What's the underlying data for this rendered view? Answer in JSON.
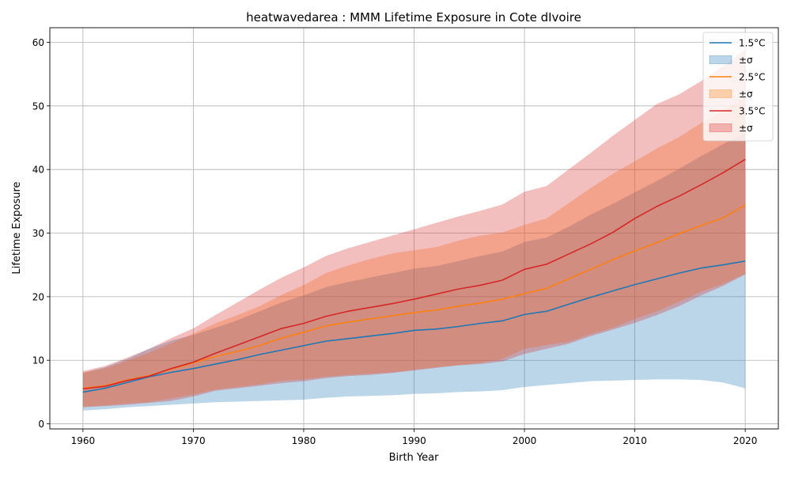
{
  "chart_data": {
    "type": "line",
    "title": "heatwavedarea : MMM Lifetime Exposure in Cote dIvoire",
    "xlabel": "Birth Year",
    "ylabel": "Lifetime Exposure",
    "xlim": [
      1957,
      2023
    ],
    "ylim": [
      -0.8,
      62.3
    ],
    "xticks": [
      1960,
      1970,
      1980,
      1990,
      2000,
      2010,
      2020
    ],
    "yticks": [
      0,
      10,
      20,
      30,
      40,
      50,
      60
    ],
    "grid": true,
    "legend_position": "top-right",
    "x": [
      1960,
      1962,
      1964,
      1966,
      1968,
      1970,
      1972,
      1974,
      1976,
      1978,
      1980,
      1982,
      1984,
      1986,
      1988,
      1990,
      1992,
      1994,
      1996,
      1998,
      2000,
      2002,
      2004,
      2006,
      2008,
      2010,
      2012,
      2014,
      2016,
      2018,
      2020
    ],
    "series": [
      {
        "name": "1.5°C",
        "band_label": "±σ",
        "line_color": "#1f77b4",
        "band_color": "#1f77b4",
        "values": [
          5.0,
          5.6,
          6.5,
          7.4,
          8.1,
          8.7,
          9.4,
          10.1,
          10.9,
          11.6,
          12.3,
          13.0,
          13.4,
          13.8,
          14.2,
          14.7,
          14.9,
          15.3,
          15.8,
          16.2,
          17.2,
          17.7,
          18.8,
          19.9,
          20.9,
          21.9,
          22.8,
          23.7,
          24.5,
          25.0,
          25.6
        ],
        "lower": [
          2.1,
          2.3,
          2.6,
          2.8,
          3.0,
          3.2,
          3.4,
          3.5,
          3.6,
          3.7,
          3.8,
          4.1,
          4.3,
          4.4,
          4.5,
          4.7,
          4.8,
          5.0,
          5.1,
          5.3,
          5.8,
          6.1,
          6.4,
          6.7,
          6.8,
          6.9,
          7.0,
          7.0,
          6.9,
          6.5,
          5.6
        ],
        "upper": [
          8.0,
          8.9,
          10.2,
          11.8,
          13.1,
          14.0,
          15.1,
          16.3,
          17.7,
          19.1,
          20.2,
          21.5,
          22.3,
          23.0,
          23.7,
          24.4,
          24.8,
          25.6,
          26.4,
          27.1,
          28.6,
          29.3,
          31.0,
          32.9,
          34.6,
          36.4,
          38.2,
          40.1,
          42.1,
          44.0,
          45.8
        ]
      },
      {
        "name": "2.5°C",
        "band_label": "±σ",
        "line_color": "#ff7f0e",
        "band_color": "#ff7f0e",
        "values": [
          5.6,
          6.0,
          6.9,
          7.6,
          8.6,
          9.6,
          10.6,
          11.4,
          12.3,
          13.5,
          14.4,
          15.4,
          16.0,
          16.5,
          17.0,
          17.5,
          17.9,
          18.5,
          19.0,
          19.6,
          20.5,
          21.3,
          22.8,
          24.3,
          25.8,
          27.2,
          28.5,
          29.9,
          31.2,
          32.4,
          34.4
        ],
        "lower": [
          2.7,
          2.9,
          3.2,
          3.4,
          4.0,
          4.6,
          5.4,
          5.8,
          6.2,
          6.8,
          7.0,
          7.4,
          7.7,
          7.9,
          8.1,
          8.5,
          8.9,
          9.2,
          9.6,
          10.2,
          11.8,
          12.4,
          12.9,
          14.1,
          15.1,
          16.5,
          17.7,
          19.2,
          20.8,
          22.0,
          23.6
        ],
        "upper": [
          8.1,
          8.7,
          9.9,
          11.2,
          12.7,
          14.2,
          15.8,
          17.1,
          18.5,
          20.3,
          21.8,
          23.7,
          24.9,
          25.9,
          26.8,
          27.3,
          27.8,
          28.8,
          29.6,
          30.1,
          31.3,
          32.3,
          34.7,
          37.1,
          39.3,
          41.3,
          43.3,
          45.1,
          47.3,
          49.3,
          51.3
        ]
      },
      {
        "name": "3.5°C",
        "band_label": "±σ",
        "line_color": "#d62728",
        "band_color": "#d62728",
        "values": [
          5.5,
          5.9,
          6.8,
          7.5,
          8.7,
          9.7,
          11.1,
          12.4,
          13.7,
          15.0,
          15.8,
          16.9,
          17.7,
          18.3,
          18.9,
          19.6,
          20.4,
          21.2,
          21.8,
          22.6,
          24.3,
          25.1,
          26.7,
          28.3,
          30.1,
          32.3,
          34.2,
          35.8,
          37.6,
          39.5,
          41.6
        ],
        "lower": [
          2.6,
          2.8,
          3.0,
          3.3,
          3.6,
          4.3,
          5.2,
          5.6,
          6.0,
          6.4,
          6.7,
          7.2,
          7.5,
          7.7,
          8.0,
          8.4,
          8.8,
          9.2,
          9.4,
          9.8,
          11.0,
          11.8,
          12.6,
          13.8,
          14.8,
          15.9,
          17.1,
          18.5,
          20.2,
          21.7,
          23.5
        ],
        "upper": [
          8.3,
          9.1,
          10.4,
          11.8,
          13.5,
          15.0,
          17.1,
          19.1,
          21.1,
          23.0,
          24.6,
          26.4,
          27.6,
          28.6,
          29.6,
          30.6,
          31.6,
          32.6,
          33.5,
          34.5,
          36.5,
          37.4,
          40.0,
          42.6,
          45.3,
          47.8,
          50.3,
          51.8,
          53.9,
          56.3,
          58.9
        ]
      }
    ]
  }
}
